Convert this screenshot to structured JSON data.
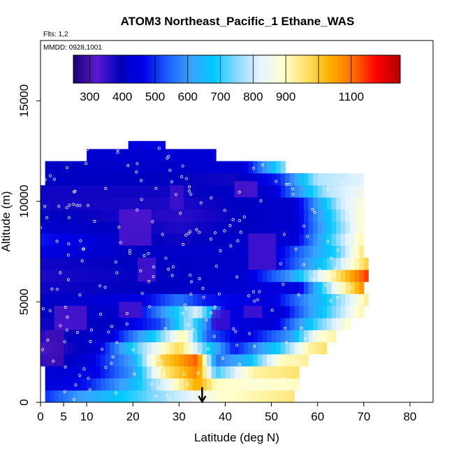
{
  "chart_data": {
    "type": "heatmap",
    "title": "ATOM3 Northeast_Pacific_1 Ethane_WAS",
    "flights_label": "Flts: 1,2",
    "dates_label": "MMDD: 0928,1001",
    "xlabel": "Latitude (deg N)",
    "ylabel": "Altitude (m)",
    "xlim": [
      0,
      85
    ],
    "ylim": [
      0,
      18000
    ],
    "x_ticks": [
      0,
      5,
      10,
      20,
      30,
      40,
      50,
      60,
      70,
      80
    ],
    "x_tick_labels": [
      "0",
      "5",
      "10",
      "20",
      "30",
      "40",
      "50",
      "60",
      "70",
      "80"
    ],
    "y_ticks": [
      0,
      5000,
      10000,
      15000
    ],
    "y_tick_labels": [
      "0",
      "5000",
      "10000",
      "15000"
    ],
    "colorbar": {
      "range": [
        250,
        1250
      ],
      "tick_values": [
        300,
        400,
        500,
        600,
        700,
        800,
        900,
        1100
      ],
      "tick_labels": [
        "300",
        "400",
        "500",
        "600",
        "700",
        "800",
        "900",
        "1100"
      ],
      "colors": [
        "#1a0070",
        "#5a1ad0",
        "#0000c0",
        "#0000e8",
        "#1a5cff",
        "#3ca0ff",
        "#00c8ff",
        "#8ad8ff",
        "#e6f4ff",
        "#ffffcc",
        "#ffe066",
        "#ffb000",
        "#ff6a00",
        "#ff0000",
        "#b00000"
      ]
    },
    "marker": {
      "latitude": 35,
      "altitude": 600
    },
    "layers": [
      {
        "alt": [
          0,
          600
        ],
        "lat": [
          1,
          55
        ],
        "profile": [
          [
            1,
            500
          ],
          [
            8,
            600
          ],
          [
            20,
            700
          ],
          [
            30,
            800
          ],
          [
            38,
            880
          ],
          [
            48,
            920
          ],
          [
            55,
            950
          ]
        ]
      },
      {
        "alt": [
          600,
          1200
        ],
        "lat": [
          1,
          56
        ],
        "profile": [
          [
            1,
            430
          ],
          [
            10,
            480
          ],
          [
            20,
            650
          ],
          [
            28,
            850
          ],
          [
            34,
            1050
          ],
          [
            38,
            900
          ],
          [
            46,
            880
          ],
          [
            56,
            900
          ]
        ]
      },
      {
        "alt": [
          1200,
          1800
        ],
        "lat": [
          1,
          56
        ],
        "profile": [
          [
            1,
            420
          ],
          [
            12,
            460
          ],
          [
            20,
            600
          ],
          [
            27,
            950
          ],
          [
            34,
            1080
          ],
          [
            38,
            700
          ],
          [
            46,
            920
          ],
          [
            56,
            960
          ]
        ]
      },
      {
        "alt": [
          1800,
          2400
        ],
        "lat": [
          0,
          58
        ],
        "profile": [
          [
            0,
            350
          ],
          [
            10,
            430
          ],
          [
            20,
            620
          ],
          [
            26,
            980
          ],
          [
            34,
            1120
          ],
          [
            38,
            560
          ],
          [
            45,
            650
          ],
          [
            52,
            900
          ],
          [
            58,
            930
          ]
        ]
      },
      {
        "alt": [
          2400,
          3000
        ],
        "lat": [
          0,
          62
        ],
        "profile": [
          [
            0,
            330
          ],
          [
            12,
            420
          ],
          [
            22,
            760
          ],
          [
            30,
            980
          ],
          [
            36,
            700
          ],
          [
            42,
            480
          ],
          [
            52,
            700
          ],
          [
            58,
            920
          ],
          [
            62,
            960
          ]
        ]
      },
      {
        "alt": [
          3000,
          3600
        ],
        "lat": [
          0,
          64
        ],
        "profile": [
          [
            0,
            360
          ],
          [
            15,
            430
          ],
          [
            25,
            700
          ],
          [
            31,
            920
          ],
          [
            36,
            540
          ],
          [
            44,
            430
          ],
          [
            54,
            600
          ],
          [
            60,
            880
          ],
          [
            64,
            920
          ]
        ]
      },
      {
        "alt": [
          3600,
          4200
        ],
        "lat": [
          0,
          67
        ],
        "profile": [
          [
            0,
            380
          ],
          [
            15,
            400
          ],
          [
            26,
            520
          ],
          [
            32,
            780
          ],
          [
            38,
            470
          ],
          [
            50,
            420
          ],
          [
            60,
            720
          ],
          [
            67,
            900
          ]
        ]
      },
      {
        "alt": [
          4200,
          4800
        ],
        "lat": [
          0,
          70
        ],
        "profile": [
          [
            0,
            390
          ],
          [
            20,
            420
          ],
          [
            28,
            640
          ],
          [
            34,
            820
          ],
          [
            40,
            450
          ],
          [
            52,
            430
          ],
          [
            62,
            700
          ],
          [
            70,
            920
          ]
        ]
      },
      {
        "alt": [
          4800,
          5400
        ],
        "lat": [
          0,
          71
        ],
        "profile": [
          [
            0,
            400
          ],
          [
            22,
            450
          ],
          [
            30,
            560
          ],
          [
            36,
            480
          ],
          [
            50,
            440
          ],
          [
            62,
            680
          ],
          [
            71,
            940
          ]
        ]
      },
      {
        "alt": [
          5400,
          6000
        ],
        "lat": [
          0,
          70
        ],
        "profile": [
          [
            0,
            380
          ],
          [
            30,
            400
          ],
          [
            40,
            420
          ],
          [
            56,
            450
          ],
          [
            64,
            850
          ],
          [
            70,
            1080
          ]
        ]
      },
      {
        "alt": [
          6000,
          6600
        ],
        "lat": [
          0,
          71
        ],
        "profile": [
          [
            0,
            370
          ],
          [
            30,
            400
          ],
          [
            44,
            420
          ],
          [
            54,
            600
          ],
          [
            64,
            950
          ],
          [
            71,
            1150
          ]
        ]
      },
      {
        "alt": [
          6600,
          7200
        ],
        "lat": [
          0,
          71
        ],
        "profile": [
          [
            0,
            380
          ],
          [
            30,
            400
          ],
          [
            50,
            420
          ],
          [
            62,
            700
          ],
          [
            71,
            1000
          ]
        ]
      },
      {
        "alt": [
          7200,
          7800
        ],
        "lat": [
          0,
          70
        ],
        "profile": [
          [
            0,
            450
          ],
          [
            20,
            400
          ],
          [
            50,
            420
          ],
          [
            64,
            700
          ],
          [
            70,
            960
          ]
        ]
      },
      {
        "alt": [
          7800,
          8400
        ],
        "lat": [
          0,
          70
        ],
        "profile": [
          [
            0,
            480
          ],
          [
            15,
            420
          ],
          [
            30,
            380
          ],
          [
            55,
            430
          ],
          [
            65,
            780
          ],
          [
            70,
            920
          ]
        ]
      },
      {
        "alt": [
          8400,
          9000
        ],
        "lat": [
          0,
          70
        ],
        "profile": [
          [
            0,
            420
          ],
          [
            30,
            370
          ],
          [
            55,
            420
          ],
          [
            66,
            780
          ],
          [
            70,
            900
          ]
        ]
      },
      {
        "alt": [
          9000,
          9600
        ],
        "lat": [
          0,
          70
        ],
        "profile": [
          [
            0,
            400
          ],
          [
            30,
            360
          ],
          [
            55,
            420
          ],
          [
            66,
            800
          ],
          [
            70,
            900
          ]
        ]
      },
      {
        "alt": [
          9600,
          10200
        ],
        "lat": [
          0,
          70
        ],
        "profile": [
          [
            0,
            380
          ],
          [
            30,
            370
          ],
          [
            55,
            420
          ],
          [
            65,
            800
          ],
          [
            70,
            880
          ]
        ]
      },
      {
        "alt": [
          10200,
          10800
        ],
        "lat": [
          0,
          70
        ],
        "profile": [
          [
            0,
            380
          ],
          [
            30,
            380
          ],
          [
            50,
            420
          ],
          [
            62,
            780
          ],
          [
            70,
            850
          ]
        ]
      },
      {
        "alt": [
          10800,
          11400
        ],
        "lat": [
          1,
          70
        ],
        "profile": [
          [
            1,
            400
          ],
          [
            30,
            390
          ],
          [
            42,
            380
          ],
          [
            52,
            500
          ],
          [
            60,
            780
          ],
          [
            70,
            820
          ]
        ]
      },
      {
        "alt": [
          11400,
          12000
        ],
        "lat": [
          1,
          53
        ],
        "profile": [
          [
            1,
            400
          ],
          [
            30,
            410
          ],
          [
            44,
            430
          ],
          [
            50,
            650
          ],
          [
            53,
            760
          ]
        ]
      },
      {
        "alt": [
          12000,
          12600
        ],
        "lat": [
          10,
          38
        ],
        "profile": [
          [
            10,
            420
          ],
          [
            38,
            430
          ]
        ]
      },
      {
        "alt": [
          12600,
          13000
        ],
        "lat": [
          19,
          27
        ],
        "profile": [
          [
            19,
            440
          ],
          [
            27,
            460
          ]
        ]
      }
    ],
    "purple_patches": [
      {
        "lat": [
          1,
          5
        ],
        "alt": [
          1800,
          3600
        ],
        "value": 300
      },
      {
        "lat": [
          3,
          10
        ],
        "alt": [
          3600,
          4800
        ],
        "value": 320
      },
      {
        "lat": [
          17,
          22
        ],
        "alt": [
          4200,
          5000
        ],
        "value": 330
      },
      {
        "lat": [
          17,
          24
        ],
        "alt": [
          7800,
          9600
        ],
        "value": 320
      },
      {
        "lat": [
          21,
          25
        ],
        "alt": [
          6000,
          7200
        ],
        "value": 330
      },
      {
        "lat": [
          28,
          31
        ],
        "alt": [
          9600,
          10800
        ],
        "value": 340
      },
      {
        "lat": [
          42,
          47
        ],
        "alt": [
          10200,
          11000
        ],
        "value": 320
      },
      {
        "lat": [
          45,
          51
        ],
        "alt": [
          6600,
          8400
        ],
        "value": 330
      },
      {
        "lat": [
          37,
          41
        ],
        "alt": [
          3600,
          4600
        ],
        "value": 340
      },
      {
        "lat": [
          44,
          48
        ],
        "alt": [
          4200,
          4800
        ],
        "value": 330
      }
    ]
  }
}
